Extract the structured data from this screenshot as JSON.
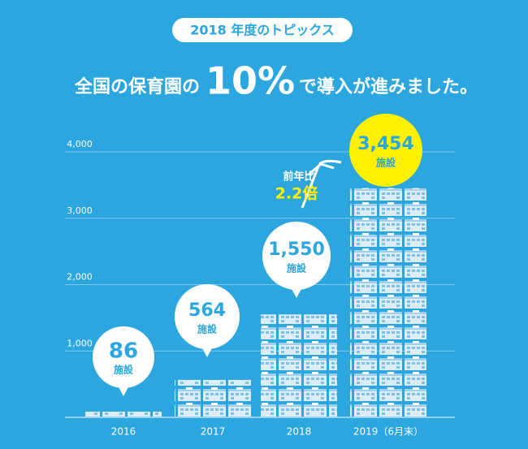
{
  "chart_data": {
    "type": "bar",
    "badge": "2018 年度のトピックス",
    "headline": {
      "before": "全国の保育園の",
      "highlight": "10%",
      "after": "で導入が進みました。"
    },
    "categories": [
      "2016",
      "2017",
      "2018",
      "2019（6月末）"
    ],
    "values": [
      86,
      564,
      1550,
      3454
    ],
    "value_labels": [
      "86",
      "564",
      "1,550",
      "3,454"
    ],
    "unit": "施設",
    "annotation": {
      "prefix": "前年比",
      "ratio": "2.2倍"
    },
    "color": "#dcedf8",
    "ylim": [
      0,
      4000
    ],
    "yticks": [
      {
        "value": 1000,
        "label": "1,000"
      },
      {
        "value": 2000,
        "label": "2,000"
      },
      {
        "value": 3000,
        "label": "3,000"
      },
      {
        "value": 4000,
        "label": "4,000"
      }
    ],
    "grid": true
  }
}
